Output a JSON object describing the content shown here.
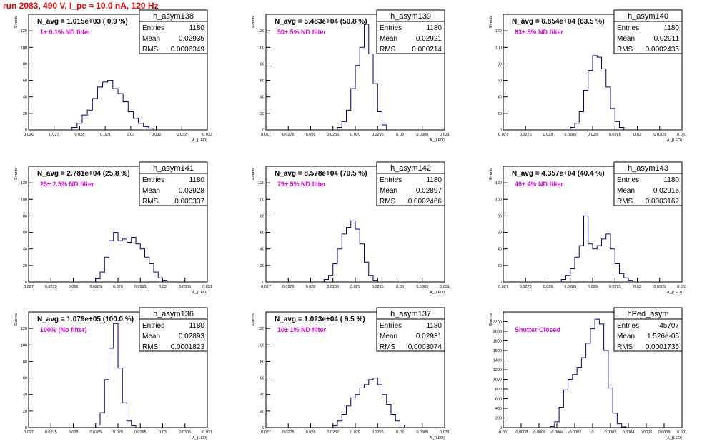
{
  "canvas_title": "run 2083,   490 V, I_pe ≈ 10.0 nA, 120 Hz",
  "colors": {
    "histogram": "#000080",
    "annotation": "#e000e0",
    "title": "#e00000",
    "frame": "#000000"
  },
  "chart_data": [
    {
      "type": "bar",
      "name": "h_asym138",
      "navg": "N_avg = 1.015e+03 ( 0.9 %)",
      "filter_label": "1± 0.1% ND filter",
      "stats": {
        "entries": "1180",
        "mean": "0.02935",
        "rms": "0.0006349"
      },
      "ylabel": "Events",
      "xlabel": "A_{LED}",
      "xlim": [
        0.026,
        0.033
      ],
      "ylim": [
        0,
        140
      ],
      "xticks": [
        "0.026",
        "0.027",
        "0.028",
        "0.029",
        "0.03",
        "0.031",
        "0.032",
        "0.033"
      ],
      "yticks": [
        "0",
        "20",
        "40",
        "60",
        "80",
        "100",
        "120"
      ],
      "x": [
        0.0278,
        0.028,
        0.0282,
        0.0284,
        0.0286,
        0.0288,
        0.029,
        0.0292,
        0.0294,
        0.0296,
        0.0298,
        0.03,
        0.0302,
        0.0304,
        0.0306,
        0.0308
      ],
      "values": [
        3,
        8,
        18,
        24,
        38,
        52,
        58,
        60,
        50,
        44,
        34,
        22,
        14,
        8,
        4,
        2
      ]
    },
    {
      "type": "bar",
      "name": "h_asym139",
      "navg": "N_avg = 5.483e+04 (50.8 %)",
      "filter_label": "50± 5% ND filter",
      "stats": {
        "entries": "1180",
        "mean": "0.02921",
        "rms": "0.000214"
      },
      "ylabel": "Events",
      "xlabel": "A_{LED}",
      "xlim": [
        0.027,
        0.031
      ],
      "ylim": [
        0,
        140
      ],
      "xticks": [
        "0.027",
        "0.0275",
        "0.028",
        "0.0285",
        "0.029",
        "0.0295",
        "0.03",
        "0.0305",
        "0.031"
      ],
      "yticks": [
        "0",
        "20",
        "40",
        "60",
        "80",
        "100",
        "120"
      ],
      "x": [
        0.02865,
        0.02875,
        0.02885,
        0.02895,
        0.02905,
        0.02915,
        0.02925,
        0.02935,
        0.02945,
        0.02955,
        0.02965
      ],
      "values": [
        3,
        10,
        24,
        50,
        78,
        100,
        128,
        92,
        56,
        22,
        6
      ]
    },
    {
      "type": "bar",
      "name": "h_asym140",
      "navg": "N_avg = 6.854e+04 (63.5 %)",
      "filter_label": "63± 5% ND filter",
      "stats": {
        "entries": "1180",
        "mean": "0.02911",
        "rms": "0.0002435"
      },
      "ylabel": "Events",
      "xlabel": "A_{LED}",
      "xlim": [
        0.027,
        0.031
      ],
      "ylim": [
        0,
        140
      ],
      "xticks": [
        "0.027",
        "0.0275",
        "0.028",
        "0.0285",
        "0.029",
        "0.0295",
        "0.03",
        "0.0305",
        "0.031"
      ],
      "yticks": [
        "0",
        "20",
        "40",
        "60",
        "80",
        "100",
        "120"
      ],
      "x": [
        0.02855,
        0.02865,
        0.02875,
        0.02885,
        0.02895,
        0.02905,
        0.02915,
        0.02925,
        0.02935,
        0.02945,
        0.02955,
        0.02965
      ],
      "values": [
        3,
        8,
        22,
        48,
        72,
        90,
        88,
        74,
        52,
        26,
        10,
        3
      ]
    },
    {
      "type": "bar",
      "name": "h_asym141",
      "navg": "N_avg = 2.781e+04 (25.8 %)",
      "filter_label": "25± 2.5% ND filter",
      "stats": {
        "entries": "1180",
        "mean": "0.02928",
        "rms": "0.000337"
      },
      "ylabel": "Events",
      "xlabel": "A_{LED}",
      "xlim": [
        0.027,
        0.031
      ],
      "ylim": [
        0,
        140
      ],
      "xticks": [
        "0.027",
        "0.0275",
        "0.028",
        "0.0285",
        "0.029",
        "0.0295",
        "0.03",
        "0.0305",
        "0.031"
      ],
      "yticks": [
        "0",
        "20",
        "40",
        "60",
        "80",
        "100",
        "120"
      ],
      "x": [
        0.02855,
        0.02865,
        0.02875,
        0.02885,
        0.02895,
        0.02905,
        0.02915,
        0.02925,
        0.02935,
        0.02945,
        0.02955,
        0.02965,
        0.02975,
        0.02985,
        0.02995,
        0.03005
      ],
      "values": [
        4,
        12,
        30,
        50,
        60,
        50,
        52,
        48,
        54,
        46,
        40,
        30,
        22,
        12,
        5,
        2
      ]
    },
    {
      "type": "bar",
      "name": "h_asym142",
      "navg": "N_avg = 8.578e+04 (79.5 %)",
      "filter_label": "79± 5% ND filter",
      "stats": {
        "entries": "1180",
        "mean": "0.02897",
        "rms": "0.0002466"
      },
      "ylabel": "Events",
      "xlabel": "A_{LED}",
      "xlim": [
        0.027,
        0.031
      ],
      "ylim": [
        0,
        140
      ],
      "xticks": [
        "0.027",
        "0.0275",
        "0.028",
        "0.0285",
        "0.029",
        "0.0295",
        "0.03",
        "0.0305",
        "0.031"
      ],
      "yticks": [
        "0",
        "20",
        "40",
        "60",
        "80",
        "100",
        "120"
      ],
      "x": [
        0.02835,
        0.02845,
        0.02855,
        0.02865,
        0.02875,
        0.02885,
        0.02895,
        0.02905,
        0.02915,
        0.02925,
        0.02935,
        0.02945
      ],
      "values": [
        3,
        8,
        22,
        40,
        58,
        66,
        74,
        64,
        46,
        24,
        8,
        2
      ]
    },
    {
      "type": "bar",
      "name": "h_asym143",
      "navg": "N_avg = 4.357e+04 (40.4 %)",
      "filter_label": "40± 4% ND filter",
      "stats": {
        "entries": "1180",
        "mean": "0.02916",
        "rms": "0.0003162"
      },
      "ylabel": "Events",
      "xlabel": "A_{LED}",
      "xlim": [
        0.027,
        0.031
      ],
      "ylim": [
        0,
        140
      ],
      "xticks": [
        "0.027",
        "0.0275",
        "0.028",
        "0.0285",
        "0.029",
        "0.0295",
        "0.03",
        "0.0305",
        "0.031"
      ],
      "yticks": [
        "0",
        "20",
        "40",
        "60",
        "80",
        "100",
        "120"
      ],
      "x": [
        0.02835,
        0.02845,
        0.02855,
        0.02865,
        0.02875,
        0.02885,
        0.02895,
        0.02905,
        0.02915,
        0.02925,
        0.02935,
        0.02945,
        0.02955,
        0.02965,
        0.02975,
        0.02985
      ],
      "values": [
        3,
        8,
        16,
        30,
        44,
        80,
        46,
        40,
        44,
        52,
        58,
        40,
        22,
        10,
        5,
        2
      ]
    },
    {
      "type": "bar",
      "name": "h_asym136",
      "navg": "N_avg = 1.079e+05 (100.0 %)",
      "filter_label": "100% (No filter)",
      "stats": {
        "entries": "1180",
        "mean": "0.02893",
        "rms": "0.0001823"
      },
      "ylabel": "Events",
      "xlabel": "A_{LED}",
      "xlim": [
        0.027,
        0.031
      ],
      "ylim": [
        0,
        140
      ],
      "xticks": [
        "0.027",
        "0.0275",
        "0.028",
        "0.0285",
        "0.029",
        "0.0295",
        "0.03",
        "0.0305",
        "0.031"
      ],
      "yticks": [
        "0",
        "20",
        "40",
        "60",
        "80",
        "100",
        "120"
      ],
      "x": [
        0.02855,
        0.02865,
        0.02875,
        0.02885,
        0.02895,
        0.02905,
        0.02915,
        0.02925,
        0.02935
      ],
      "values": [
        3,
        18,
        58,
        96,
        126,
        72,
        30,
        8,
        2
      ]
    },
    {
      "type": "bar",
      "name": "h_asym137",
      "navg": "N_avg = 1.023e+04 ( 9.5 %)",
      "filter_label": "10± 1% ND filter",
      "stats": {
        "entries": "1180",
        "mean": "0.02931",
        "rms": "0.0003074"
      },
      "ylabel": "Events",
      "xlabel": "A_{LED}",
      "xlim": [
        0.027,
        0.031
      ],
      "ylim": [
        0,
        140
      ],
      "xticks": [
        "0.027",
        "0.0275",
        "0.028",
        "0.0285",
        "0.029",
        "0.0295",
        "0.03",
        "0.0305",
        "0.031"
      ],
      "yticks": [
        "0",
        "20",
        "40",
        "60",
        "80",
        "100",
        "120"
      ],
      "x": [
        0.02855,
        0.02865,
        0.02875,
        0.02885,
        0.02895,
        0.02905,
        0.02915,
        0.02925,
        0.02935,
        0.02945,
        0.02955,
        0.02965,
        0.02975,
        0.02985,
        0.02995,
        0.03005
      ],
      "values": [
        2,
        8,
        16,
        26,
        36,
        40,
        48,
        52,
        58,
        60,
        52,
        40,
        28,
        16,
        8,
        3
      ]
    },
    {
      "type": "bar",
      "name": "hPed_asym",
      "navg": "",
      "filter_label": "Shutter Closed",
      "stats": {
        "entries": "45707",
        "mean": "1.526e-06",
        "rms": "0.0001735"
      },
      "ylabel": "Events",
      "xlabel": "A_{LED}",
      "xlim": [
        -0.001,
        0.001
      ],
      "ylim": [
        0,
        2400
      ],
      "xticks": [
        "-0.001",
        "-0.0008",
        "-0.0006",
        "-0.0004",
        "-0.0002",
        "0",
        "0.0002",
        "0.0004",
        "0.0006",
        "0.0008",
        "0.001"
      ],
      "yticks": [
        "0",
        "200",
        "400",
        "600",
        "800",
        "1000",
        "1200",
        "1400",
        "1600",
        "1800",
        "2000",
        "2200"
      ],
      "x": [
        -0.00045,
        -0.0004,
        -0.00035,
        -0.0003,
        -0.00025,
        -0.0002,
        -0.00015,
        -0.0001,
        -5e-05,
        0.0,
        5e-05,
        0.0001,
        0.00015,
        0.0002,
        0.00025,
        0.0003,
        0.00035
      ],
      "values": [
        20,
        120,
        420,
        780,
        1000,
        1100,
        1250,
        1450,
        1750,
        2050,
        2250,
        2150,
        1600,
        820,
        300,
        80,
        15
      ]
    }
  ]
}
